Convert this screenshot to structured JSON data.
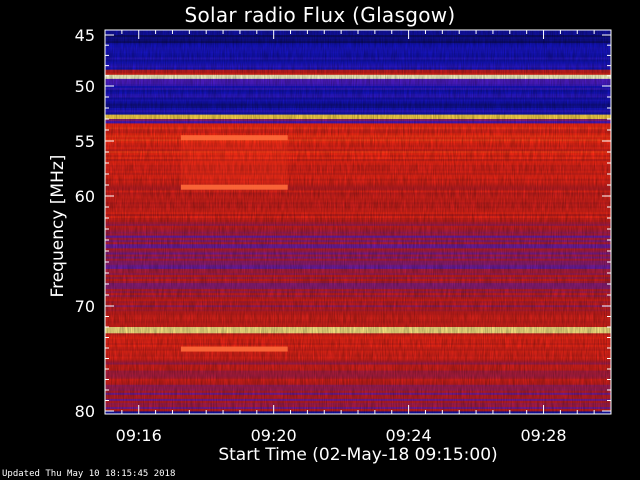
{
  "chart_data": {
    "type": "heatmap",
    "title": "Solar radio Flux (Glasgow)",
    "xlabel": "Start Time (02-May-18 09:15:00)",
    "ylabel": "Frequency [MHz]",
    "xlim": [
      "09:15:00",
      "09:30:00"
    ],
    "ylim": [
      45,
      80
    ],
    "y_direction": "increasing-downward",
    "x_ticks": [
      "09:16",
      "09:20",
      "09:24",
      "09:28"
    ],
    "y_ticks": [
      45,
      50,
      55,
      60,
      70,
      80
    ],
    "colormap": [
      "#0a0a5a",
      "#1414c8",
      "#5a1ec8",
      "#c81e1e",
      "#ff2a14",
      "#ffd23c",
      "#ffffc8"
    ],
    "bands": [
      {
        "from": 45.0,
        "to": 46.0,
        "level": 0.1
      },
      {
        "from": 46.0,
        "to": 48.4,
        "level": 0.18
      },
      {
        "from": 48.4,
        "to": 48.9,
        "level": 0.55
      },
      {
        "from": 48.9,
        "to": 49.3,
        "level": 1.0
      },
      {
        "from": 49.3,
        "to": 50.0,
        "level": 0.3
      },
      {
        "from": 50.0,
        "to": 51.4,
        "level": 0.2
      },
      {
        "from": 51.4,
        "to": 51.8,
        "level": 0.08
      },
      {
        "from": 51.8,
        "to": 52.6,
        "level": 0.16
      },
      {
        "from": 52.6,
        "to": 53.0,
        "level": 0.85
      },
      {
        "from": 53.0,
        "to": 53.4,
        "level": 0.35
      },
      {
        "from": 53.4,
        "to": 57.0,
        "level": 0.62
      },
      {
        "from": 57.0,
        "to": 62.0,
        "level": 0.56
      },
      {
        "from": 62.0,
        "to": 63.6,
        "level": 0.47
      },
      {
        "from": 63.6,
        "to": 64.2,
        "level": 0.4
      },
      {
        "from": 64.2,
        "to": 67.0,
        "level": 0.42
      },
      {
        "from": 67.0,
        "to": 70.5,
        "level": 0.48
      },
      {
        "from": 70.5,
        "to": 72.0,
        "level": 0.55
      },
      {
        "from": 72.0,
        "to": 72.6,
        "level": 0.92
      },
      {
        "from": 72.6,
        "to": 75.0,
        "level": 0.6
      },
      {
        "from": 75.0,
        "to": 77.5,
        "level": 0.5
      },
      {
        "from": 77.5,
        "to": 80.0,
        "level": 0.45
      }
    ],
    "features": [
      {
        "type": "enhanced-region",
        "t_start": "09:17:15",
        "t_end": "09:20:25",
        "f_start": 54.5,
        "f_end": 59.5
      },
      {
        "type": "line",
        "t_start": "09:17:15",
        "t_end": "09:20:25",
        "freq": 54.7
      },
      {
        "type": "line",
        "t_start": "09:17:15",
        "t_end": "09:20:25",
        "freq": 59.2
      },
      {
        "type": "line",
        "t_start": "09:17:15",
        "t_end": "09:20:25",
        "freq": 74.1
      }
    ]
  },
  "footer": {
    "updated": "Updated Thu May 10 18:15:45 2018"
  }
}
